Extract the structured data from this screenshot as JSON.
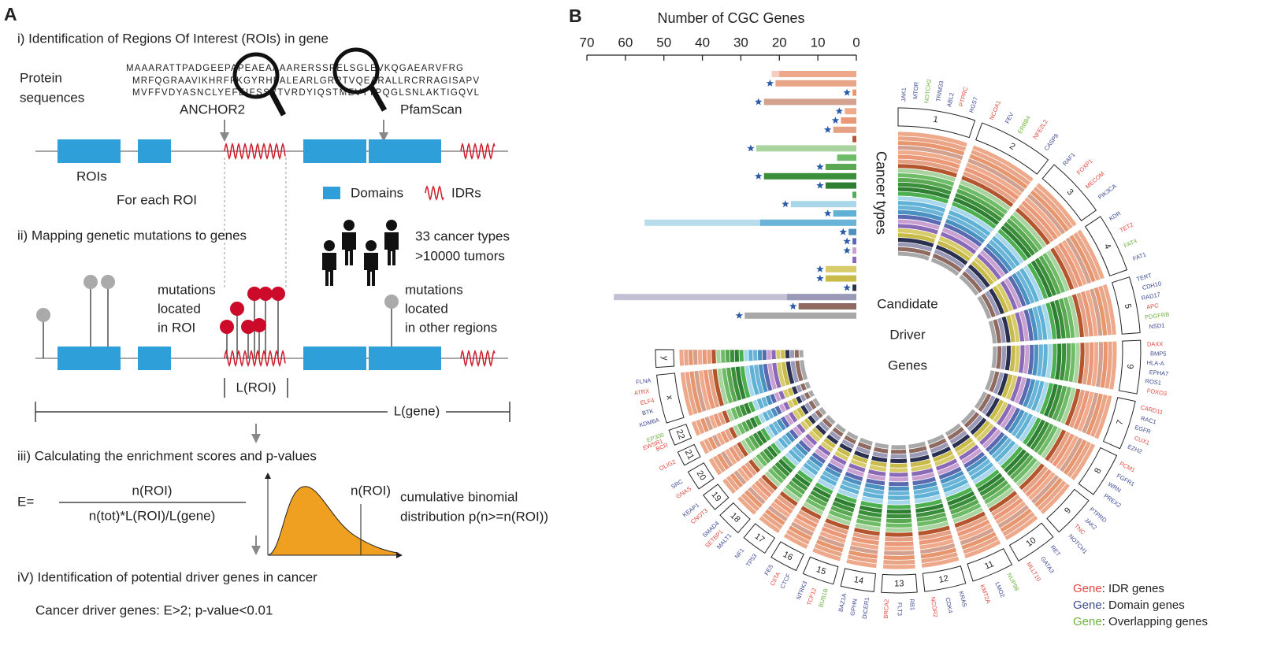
{
  "panel_a": {
    "label": "A",
    "steps": [
      "i) Identification of Regions Of Interest (ROIs) in gene",
      "ii) Mapping genetic mutations to genes",
      "iii) Calculating the enrichment scores and p-values",
      "iV) Identification of potential driver genes in cancer"
    ],
    "protein_label": [
      "Protein",
      "sequences"
    ],
    "sequences": [
      "MAAARATTPADGEEPAPEAEAAAARERSSRELSGLEVKQGAEARVFRG",
      "MRFQGRAAVIKHRFFKGYRHPALEARLGRRTVQEARALLRCRRAGISAPV",
      "MVFFVDYASNCLYEFEIFSSVTVRDYIQSTMEVTTPQGLSNLAKTIGQVL"
    ],
    "tools": [
      "ANCHOR2",
      "PfamScan"
    ],
    "rois": "ROIs",
    "for_each_roi": "For each ROI",
    "legend": [
      "Domains",
      "IDRs"
    ],
    "cohort": [
      "33 cancer types",
      ">10000 tumors"
    ],
    "mutations_roi": [
      "mutations",
      "located",
      "in ROI"
    ],
    "mutations_other": [
      "mutations",
      "located",
      "in other regions"
    ],
    "l_roi": "L(ROI)",
    "l_gene": "L(gene)",
    "formula": {
      "lhs": "E=",
      "numerator": "n(ROI)",
      "denominator": "n(tot)*L(ROI)/L(gene)"
    },
    "curve_label": "n(ROI)",
    "distribution": [
      "cumulative binomial",
      "distribution p(n>=n(ROI))"
    ],
    "criteria": "Cancer driver genes: E>2; p-value<0.01"
  },
  "panel_b_label": "B",
  "chart_data": {
    "type": "bar",
    "orientation": "horizontal",
    "title": "Number of CGC Genes",
    "ylabel": "Cancer types",
    "xlim": [
      70,
      0
    ],
    "xticks": [
      70,
      60,
      50,
      40,
      30,
      20,
      10,
      0
    ],
    "categories": [
      null,
      null,
      null,
      null,
      null,
      null,
      null,
      null,
      null,
      null,
      null,
      null,
      null,
      null,
      null,
      null,
      null,
      null,
      null,
      null,
      null,
      null,
      null,
      null,
      null,
      null,
      null
    ],
    "series": [
      {
        "values": [
          22,
          null,
          null,
          null,
          null,
          null,
          null,
          null,
          null,
          null,
          null,
          null,
          null,
          null,
          null,
          null,
          55,
          null,
          null,
          null,
          null,
          null,
          null,
          null,
          63,
          null,
          null
        ],
        "colors": [
          "#f6cdbf",
          null,
          null,
          null,
          null,
          null,
          null,
          null,
          null,
          null,
          null,
          null,
          null,
          null,
          null,
          null,
          "#b8dcec",
          null,
          null,
          null,
          null,
          null,
          null,
          null,
          "#c3c0d6",
          null,
          null
        ]
      },
      {
        "values": [
          20,
          21,
          1,
          24,
          3,
          4,
          6,
          1,
          26,
          5,
          8,
          24,
          8,
          1,
          17,
          6,
          25,
          2,
          1,
          1,
          1,
          8,
          8,
          1,
          18,
          15,
          29
        ],
        "colors": [
          "#eea98a",
          "#e9a588",
          "#e8966e",
          "#d2a190",
          "#f0ab8c",
          "#eb9878",
          "#e5a184",
          "#b4552e",
          "#a9d4a0",
          "#6fbc68",
          "#5aa851",
          "#3b8f3a",
          "#2f7f32",
          "#4caf50",
          "#a8d6ea",
          "#5fb2d6",
          "#6ab4d8",
          "#4a90c0",
          "#5a6ab0",
          "#c9a0d0",
          "#8a6ab8",
          "#d8cc6a",
          "#c8bb4a",
          "#2a3050",
          "#9a9ab8",
          "#8f6a60",
          "#a8a8a8"
        ]
      }
    ],
    "starred": [
      false,
      true,
      true,
      true,
      true,
      true,
      true,
      false,
      true,
      false,
      true,
      true,
      true,
      false,
      true,
      true,
      false,
      true,
      true,
      true,
      false,
      true,
      true,
      true,
      false,
      true,
      true
    ],
    "star_color": "#2a5aa8"
  },
  "circos": {
    "center_text": [
      "Candidate",
      "Driver",
      "Genes"
    ],
    "chromosomes": [
      "1",
      "2",
      "3",
      "4",
      "5",
      "6",
      "7",
      "8",
      "9",
      "10",
      "11",
      "12",
      "13",
      "14",
      "15",
      "16",
      "17",
      "18",
      "19",
      "20",
      "21",
      "22",
      "x",
      "y"
    ],
    "class_colors": {
      "idr": "#e2483f",
      "domain": "#3d4a94",
      "overlap": "#6cb33f"
    },
    "genes": [
      {
        "name": "JAK1",
        "chromosome": 0,
        "class": "domain"
      },
      {
        "name": "MTOR",
        "chromosome": 0,
        "class": "domain"
      },
      {
        "name": "NOTCH2",
        "chromosome": 0,
        "class": "overlap"
      },
      {
        "name": "TRIM33",
        "chromosome": 0,
        "class": "domain"
      },
      {
        "name": "ABL2",
        "chromosome": 0,
        "class": "domain"
      },
      {
        "name": "PTPRC",
        "chromosome": 0,
        "class": "idr"
      },
      {
        "name": "RGS7",
        "chromosome": 0,
        "class": "domain"
      },
      {
        "name": "NCOA1",
        "chromosome": 1,
        "class": "idr"
      },
      {
        "name": "FEV",
        "chromosome": 1,
        "class": "domain"
      },
      {
        "name": "ERBB4",
        "chromosome": 1,
        "class": "overlap"
      },
      {
        "name": "NFE2L2",
        "chromosome": 1,
        "class": "idr"
      },
      {
        "name": "CASP8",
        "chromosome": 1,
        "class": "domain"
      },
      {
        "name": "RAF1",
        "chromosome": 2,
        "class": "domain"
      },
      {
        "name": "FOXP1",
        "chromosome": 2,
        "class": "idr"
      },
      {
        "name": "MECOM",
        "chromosome": 2,
        "class": "idr"
      },
      {
        "name": "PIK3CA",
        "chromosome": 2,
        "class": "domain"
      },
      {
        "name": "KDR",
        "chromosome": 3,
        "class": "domain"
      },
      {
        "name": "TET2",
        "chromosome": 3,
        "class": "idr"
      },
      {
        "name": "FAT4",
        "chromosome": 3,
        "class": "overlap"
      },
      {
        "name": "FAT1",
        "chromosome": 3,
        "class": "domain"
      },
      {
        "name": "TERT",
        "chromosome": 4,
        "class": "domain"
      },
      {
        "name": "CDH10",
        "chromosome": 4,
        "class": "domain"
      },
      {
        "name": "RAD17",
        "chromosome": 4,
        "class": "domain"
      },
      {
        "name": "APC",
        "chromosome": 4,
        "class": "idr"
      },
      {
        "name": "PDGFRB",
        "chromosome": 4,
        "class": "overlap"
      },
      {
        "name": "NSD1",
        "chromosome": 4,
        "class": "domain"
      },
      {
        "name": "DAXX",
        "chromosome": 5,
        "class": "idr"
      },
      {
        "name": "BMP5",
        "chromosome": 5,
        "class": "domain"
      },
      {
        "name": "HLA-A",
        "chromosome": 5,
        "class": "domain"
      },
      {
        "name": "EPHA7",
        "chromosome": 5,
        "class": "domain"
      },
      {
        "name": "ROS1",
        "chromosome": 5,
        "class": "domain"
      },
      {
        "name": "FOXO3",
        "chromosome": 5,
        "class": "idr"
      },
      {
        "name": "CARD11",
        "chromosome": 6,
        "class": "idr"
      },
      {
        "name": "RAC1",
        "chromosome": 6,
        "class": "domain"
      },
      {
        "name": "EGFR",
        "chromosome": 6,
        "class": "domain"
      },
      {
        "name": "CUX1",
        "chromosome": 6,
        "class": "idr"
      },
      {
        "name": "EZH2",
        "chromosome": 6,
        "class": "domain"
      },
      {
        "name": "PCM1",
        "chromosome": 7,
        "class": "idr"
      },
      {
        "name": "FGFR1",
        "chromosome": 7,
        "class": "domain"
      },
      {
        "name": "WRN",
        "chromosome": 7,
        "class": "domain"
      },
      {
        "name": "PREX2",
        "chromosome": 7,
        "class": "domain"
      },
      {
        "name": "PTPRD",
        "chromosome": 8,
        "class": "domain"
      },
      {
        "name": "JAK2",
        "chromosome": 8,
        "class": "domain"
      },
      {
        "name": "TNC",
        "chromosome": 8,
        "class": "idr"
      },
      {
        "name": "NOTCH1",
        "chromosome": 8,
        "class": "domain"
      },
      {
        "name": "RET",
        "chromosome": 9,
        "class": "domain"
      },
      {
        "name": "GATA3",
        "chromosome": 9,
        "class": "domain"
      },
      {
        "name": "MLLT10",
        "chromosome": 9,
        "class": "idr"
      },
      {
        "name": "NUP98",
        "chromosome": 10,
        "class": "overlap"
      },
      {
        "name": "LMO2",
        "chromosome": 10,
        "class": "domain"
      },
      {
        "name": "KMT2A",
        "chromosome": 10,
        "class": "idr"
      },
      {
        "name": "KRAS",
        "chromosome": 11,
        "class": "domain"
      },
      {
        "name": "CDK4",
        "chromosome": 11,
        "class": "domain"
      },
      {
        "name": "NCOR2",
        "chromosome": 11,
        "class": "idr"
      },
      {
        "name": "RB1",
        "chromosome": 12,
        "class": "domain"
      },
      {
        "name": "FLT3",
        "chromosome": 12,
        "class": "domain"
      },
      {
        "name": "BRCA2",
        "chromosome": 12,
        "class": "idr"
      },
      {
        "name": "DICER1",
        "chromosome": 13,
        "class": "domain"
      },
      {
        "name": "GPHN",
        "chromosome": 13,
        "class": "domain"
      },
      {
        "name": "BAZ1A",
        "chromosome": 13,
        "class": "domain"
      },
      {
        "name": "BUB1B",
        "chromosome": 14,
        "class": "overlap"
      },
      {
        "name": "TCF12",
        "chromosome": 14,
        "class": "idr"
      },
      {
        "name": "NTRK3",
        "chromosome": 14,
        "class": "domain"
      },
      {
        "name": "CTCF",
        "chromosome": 15,
        "class": "domain"
      },
      {
        "name": "CIITA",
        "chromosome": 15,
        "class": "idr"
      },
      {
        "name": "FES",
        "chromosome": 15,
        "class": "domain"
      },
      {
        "name": "TP53",
        "chromosome": 16,
        "class": "domain"
      },
      {
        "name": "NF1",
        "chromosome": 16,
        "class": "domain"
      },
      {
        "name": "MALT1",
        "chromosome": 17,
        "class": "domain"
      },
      {
        "name": "SETBP1",
        "chromosome": 17,
        "class": "idr"
      },
      {
        "name": "SMAD4",
        "chromosome": 17,
        "class": "domain"
      },
      {
        "name": "CNOT3",
        "chromosome": 18,
        "class": "idr"
      },
      {
        "name": "KEAP1",
        "chromosome": 18,
        "class": "domain"
      },
      {
        "name": "GNAS",
        "chromosome": 19,
        "class": "idr"
      },
      {
        "name": "SRC",
        "chromosome": 19,
        "class": "domain"
      },
      {
        "name": "OLIG2",
        "chromosome": 20,
        "class": "idr"
      },
      {
        "name": "BCR",
        "chromosome": 21,
        "class": "idr"
      },
      {
        "name": "EWSR1",
        "chromosome": 21,
        "class": "idr"
      },
      {
        "name": "EP300",
        "chromosome": 21,
        "class": "overlap"
      },
      {
        "name": "KDM6A",
        "chromosome": 22,
        "class": "domain"
      },
      {
        "name": "BTK",
        "chromosome": 22,
        "class": "domain"
      },
      {
        "name": "ELF4",
        "chromosome": 22,
        "class": "idr"
      },
      {
        "name": "ATRX",
        "chromosome": 22,
        "class": "idr"
      },
      {
        "name": "FLNA",
        "chromosome": 22,
        "class": "domain"
      }
    ],
    "legend": [
      {
        "word": "Gene",
        "text": ": IDR genes",
        "class": "idr"
      },
      {
        "word": "Gene",
        "text": ": Domain genes",
        "class": "domain"
      },
      {
        "word": "Gene",
        "text": ": Overlapping genes",
        "class": "overlap"
      }
    ]
  }
}
